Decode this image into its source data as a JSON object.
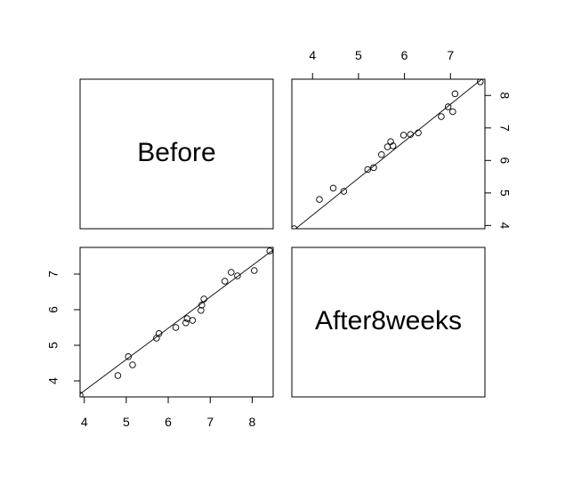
{
  "chart_data": {
    "type": "scatter",
    "layout": "pairs-matrix",
    "variables": [
      "Before",
      "After8weeks"
    ],
    "axes": {
      "Before": {
        "range": [
          3.9,
          8.5
        ],
        "ticks": [
          4,
          5,
          6,
          7,
          8
        ]
      },
      "After8weeks": {
        "range": [
          3.55,
          7.75
        ],
        "ticks": [
          4,
          5,
          6,
          7
        ]
      }
    },
    "points": [
      {
        "Before": 3.9,
        "After8weeks": 3.6
      },
      {
        "Before": 4.8,
        "After8weeks": 4.15
      },
      {
        "Before": 5.05,
        "After8weeks": 4.68
      },
      {
        "Before": 5.15,
        "After8weeks": 4.45
      },
      {
        "Before": 5.72,
        "After8weeks": 5.2
      },
      {
        "Before": 5.78,
        "After8weeks": 5.33
      },
      {
        "Before": 6.18,
        "After8weeks": 5.5
      },
      {
        "Before": 6.42,
        "After8weeks": 5.63
      },
      {
        "Before": 6.45,
        "After8weeks": 5.75
      },
      {
        "Before": 6.58,
        "After8weeks": 5.7
      },
      {
        "Before": 6.78,
        "After8weeks": 5.98
      },
      {
        "Before": 6.8,
        "After8weeks": 6.13
      },
      {
        "Before": 6.85,
        "After8weeks": 6.3
      },
      {
        "Before": 7.35,
        "After8weeks": 6.8
      },
      {
        "Before": 7.5,
        "After8weeks": 7.05
      },
      {
        "Before": 7.65,
        "After8weeks": 6.95
      },
      {
        "Before": 8.05,
        "After8weeks": 7.1
      },
      {
        "Before": 8.42,
        "After8weeks": 7.65
      }
    ],
    "fit_line": {
      "slope": 0.88,
      "intercept": 0.2
    }
  }
}
